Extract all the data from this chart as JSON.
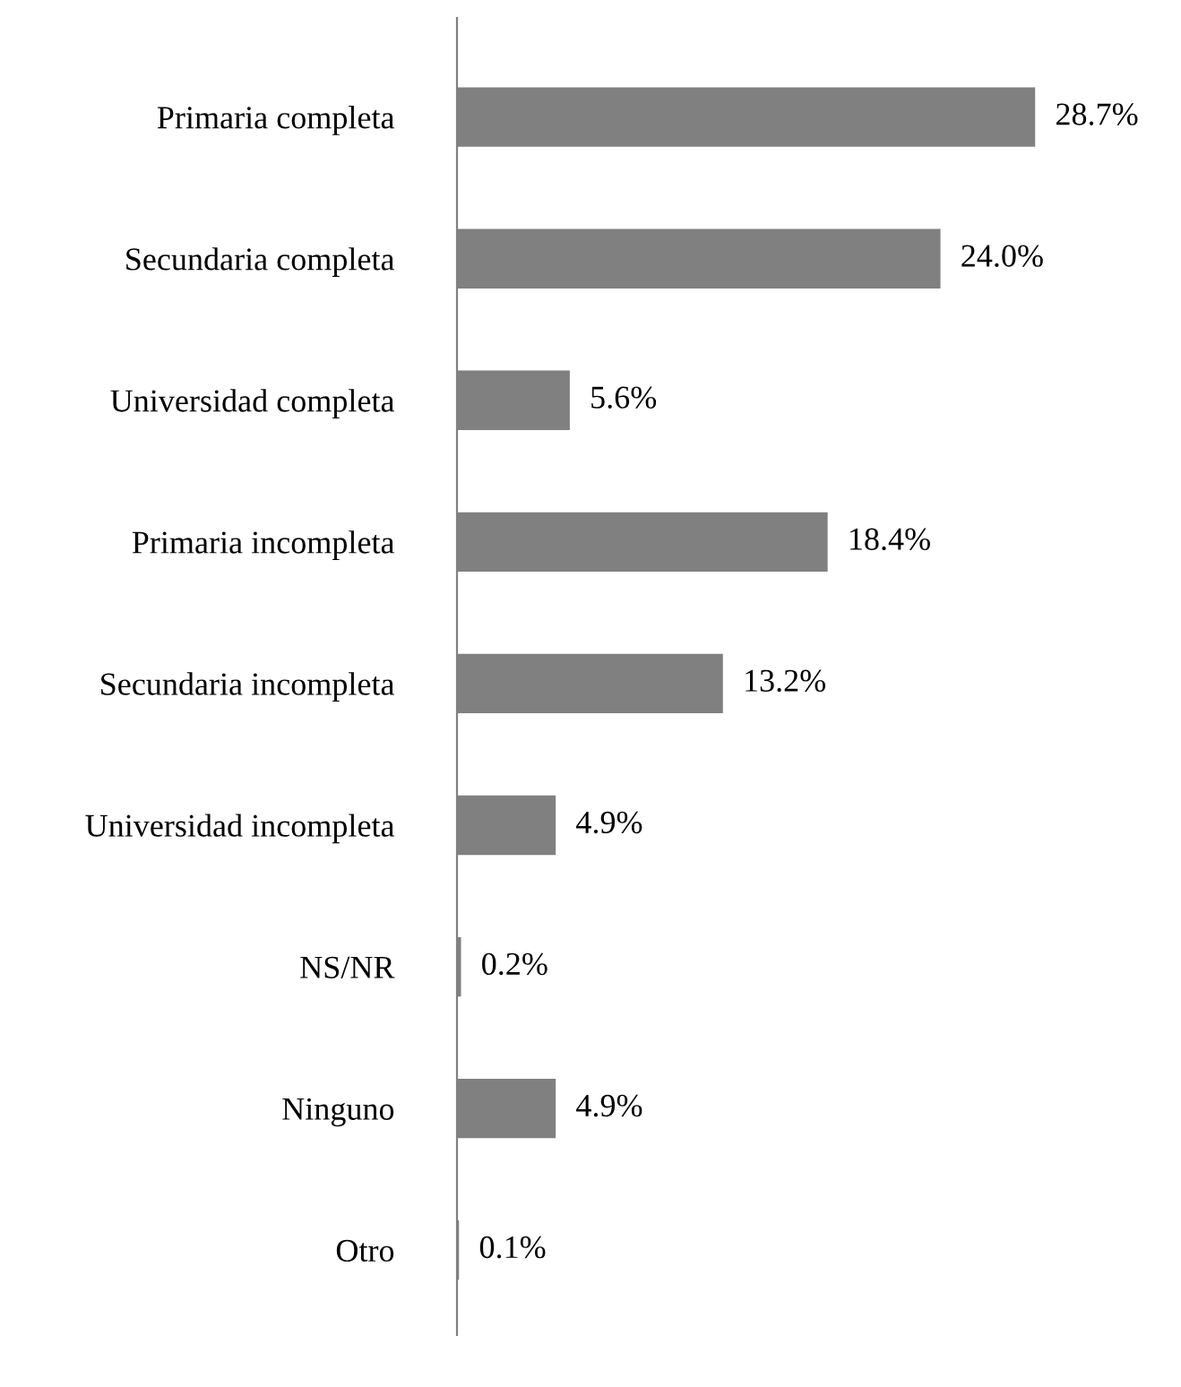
{
  "chart_data": {
    "type": "bar",
    "orientation": "horizontal",
    "categories": [
      "Primaria completa",
      "Secundaria completa",
      "Universidad completa",
      "Primaria incompleta",
      "Secundaria incompleta",
      "Universidad incompleta",
      "NS/NR",
      "Ninguno",
      "Otro"
    ],
    "values": [
      28.7,
      24.0,
      5.6,
      18.4,
      13.2,
      4.9,
      0.2,
      4.9,
      0.1
    ],
    "value_labels": [
      "28.7%",
      "24.0%",
      "5.6%",
      "18.4%",
      "13.2%",
      "4.9%",
      "0.2%",
      "4.9%",
      "0.1%"
    ],
    "color": "#808080"
  }
}
